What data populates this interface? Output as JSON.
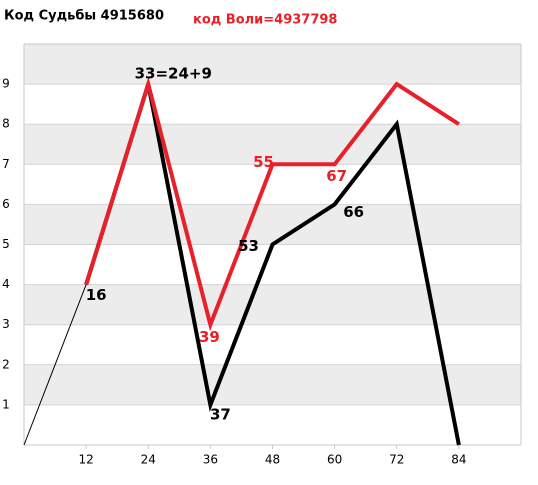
{
  "chart_data": {
    "type": "line",
    "title": "Код Судьбы 4915680",
    "subtitle": "код Воли=4937798",
    "x": [
      0,
      12,
      24,
      36,
      48,
      60,
      72,
      84
    ],
    "xlim": [
      0,
      96
    ],
    "xticks": [
      12,
      24,
      36,
      48,
      60,
      72,
      84
    ],
    "ylim": [
      0,
      10
    ],
    "yticks": [
      1,
      2,
      3,
      4,
      5,
      6,
      7,
      8,
      9
    ],
    "grid": true,
    "series": [
      {
        "color": "#000000",
        "width": 1,
        "values": [
          0,
          4,
          null,
          null,
          null,
          null,
          null,
          null
        ]
      },
      {
        "color": "#000000",
        "width": 4,
        "values": [
          null,
          4,
          9,
          1,
          5,
          6,
          8,
          0
        ]
      },
      {
        "color": "#e8202a",
        "width": 4,
        "values": [
          null,
          4,
          9,
          3,
          7,
          7,
          9,
          8
        ]
      }
    ],
    "annotations": [
      {
        "text": "33=24+9",
        "x": 24,
        "y": 9,
        "color": "#000000"
      },
      {
        "text": "16",
        "x": 12,
        "y": 4,
        "color": "#000000"
      },
      {
        "text": "37",
        "x": 36,
        "y": 1,
        "color": "#000000"
      },
      {
        "text": "53",
        "x": 48,
        "y": 5,
        "color": "#000000"
      },
      {
        "text": "66",
        "x": 60,
        "y": 6,
        "color": "#000000"
      },
      {
        "text": "39",
        "x": 36,
        "y": 3,
        "color": "#e8202a"
      },
      {
        "text": "55",
        "x": 48,
        "y": 7,
        "color": "#e8202a"
      },
      {
        "text": "67",
        "x": 60,
        "y": 7,
        "color": "#e8202a"
      }
    ]
  }
}
